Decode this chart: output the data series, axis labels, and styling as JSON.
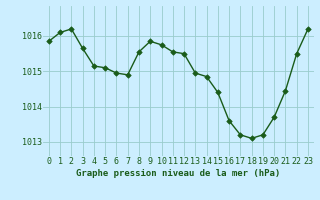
{
  "x": [
    0,
    1,
    2,
    3,
    4,
    5,
    6,
    7,
    8,
    9,
    10,
    11,
    12,
    13,
    14,
    15,
    16,
    17,
    18,
    19,
    20,
    21,
    22,
    23
  ],
  "y": [
    1015.85,
    1016.1,
    1016.2,
    1015.65,
    1015.15,
    1015.1,
    1014.95,
    1014.9,
    1015.55,
    1015.85,
    1015.75,
    1015.55,
    1015.5,
    1014.95,
    1014.85,
    1014.4,
    1013.6,
    1013.2,
    1013.1,
    1013.2,
    1013.7,
    1014.45,
    1015.5,
    1016.2
  ],
  "line_color": "#1a5c1a",
  "marker": "D",
  "markersize": 2.8,
  "linewidth": 1.0,
  "bg_color": "#cceeff",
  "grid_color": "#99cccc",
  "ylim_min": 1012.6,
  "ylim_max": 1016.85,
  "xlabel": "Graphe pression niveau de la mer (hPa)",
  "xlabel_fontsize": 6.5,
  "tick_fontsize": 6.0,
  "xlabel_color": "#1a5c1a",
  "tick_color": "#1a5c1a",
  "yticks": [
    1013,
    1014,
    1015,
    1016
  ],
  "xticks": [
    0,
    1,
    2,
    3,
    4,
    5,
    6,
    7,
    8,
    9,
    10,
    11,
    12,
    13,
    14,
    15,
    16,
    17,
    18,
    19,
    20,
    21,
    22,
    23
  ]
}
